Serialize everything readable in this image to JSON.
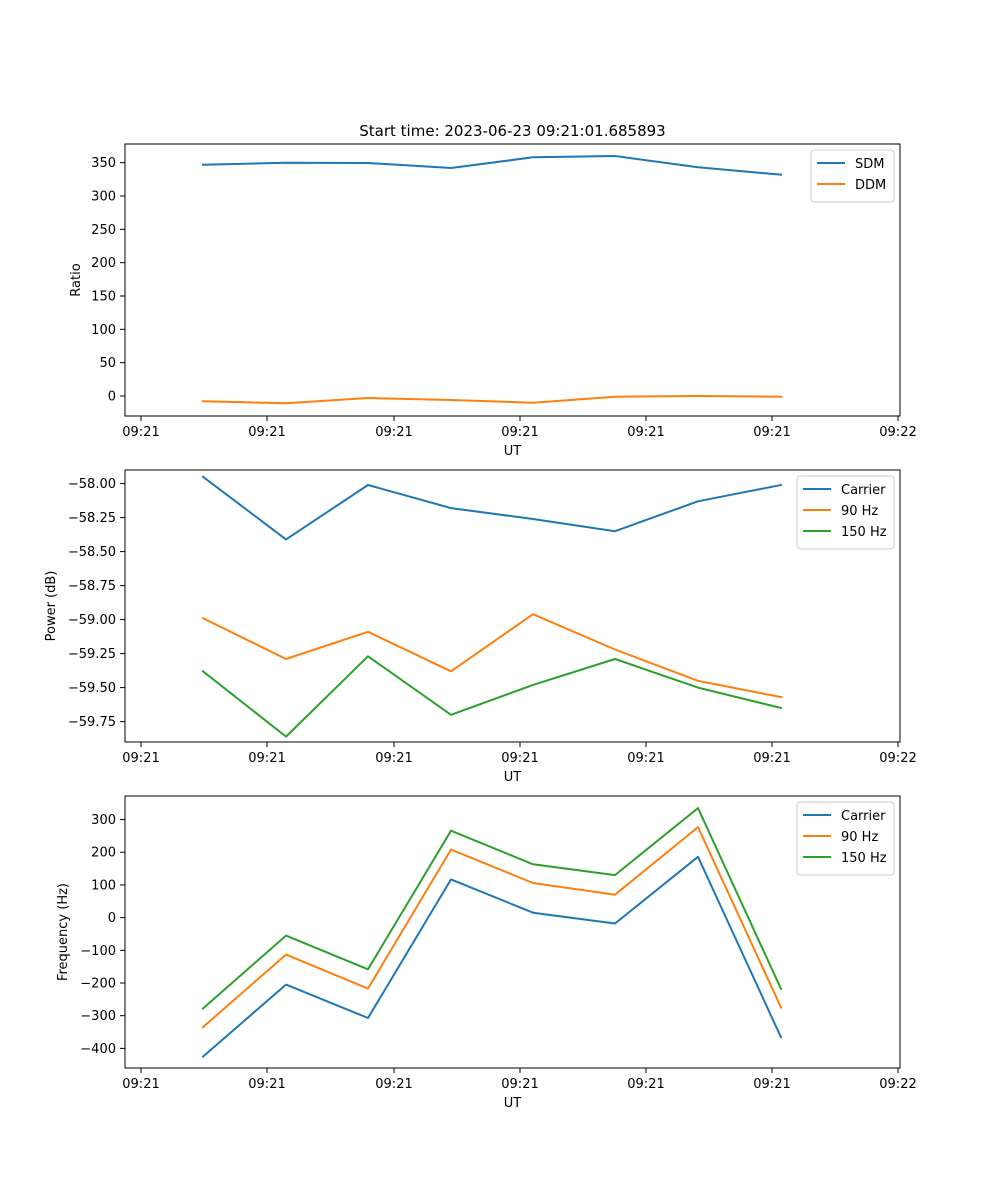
{
  "figure": {
    "title": "Start time: 2023-06-23 09:21:01.685893"
  },
  "chart_data": [
    {
      "type": "line",
      "xlabel": "UT",
      "ylabel": "Ratio",
      "x_tick_labels": [
        "09:21",
        "09:21",
        "09:21",
        "09:21",
        "09:21",
        "09:21",
        "09:22"
      ],
      "y_ticks": [
        0,
        50,
        100,
        150,
        200,
        250,
        300,
        350
      ],
      "y_tick_labels": [
        "0",
        "50",
        "100",
        "150",
        "200",
        "250",
        "300",
        "350"
      ],
      "ylim": [
        -30,
        378
      ],
      "legend_position": "upper right",
      "series": [
        {
          "name": "SDM",
          "color": "#1f77b4",
          "values": [
            347,
            350,
            349.5,
            342,
            358,
            360,
            343,
            332
          ]
        },
        {
          "name": "DDM",
          "color": "#ff7f0e",
          "values": [
            -8,
            -11,
            -3,
            -6,
            -10,
            -1,
            0,
            -1
          ]
        }
      ]
    },
    {
      "type": "line",
      "xlabel": "UT",
      "ylabel": "Power (dB)",
      "x_tick_labels": [
        "09:21",
        "09:21",
        "09:21",
        "09:21",
        "09:21",
        "09:21",
        "09:22"
      ],
      "y_ticks": [
        -58.0,
        -58.25,
        -58.5,
        -58.75,
        -59.0,
        -59.25,
        -59.5,
        -59.75
      ],
      "y_tick_labels": [
        "−58.00",
        "−58.25",
        "−58.50",
        "−58.75",
        "−59.00",
        "−59.25",
        "−59.50",
        "−59.75"
      ],
      "ylim": [
        -59.9,
        -57.9
      ],
      "legend_position": "upper right",
      "series": [
        {
          "name": "Carrier",
          "color": "#1f77b4",
          "values": [
            -57.95,
            -58.41,
            -58.01,
            -58.18,
            -58.26,
            -58.35,
            -58.13,
            -58.01
          ]
        },
        {
          "name": "90 Hz",
          "color": "#ff7f0e",
          "values": [
            -58.99,
            -59.29,
            -59.09,
            -59.38,
            -58.96,
            -59.22,
            -59.45,
            -59.57
          ]
        },
        {
          "name": "150 Hz",
          "color": "#2ca02c",
          "values": [
            -59.38,
            -59.86,
            -59.27,
            -59.7,
            -59.48,
            -59.29,
            -59.5,
            -59.65
          ]
        }
      ]
    },
    {
      "type": "line",
      "xlabel": "UT",
      "ylabel": "Frequency (Hz)",
      "x_tick_labels": [
        "09:21",
        "09:21",
        "09:21",
        "09:21",
        "09:21",
        "09:21",
        "09:22"
      ],
      "y_ticks": [
        300,
        200,
        100,
        0,
        -100,
        -200,
        -300,
        -400
      ],
      "y_tick_labels": [
        "300",
        "200",
        "100",
        "0",
        "−100",
        "−200",
        "−300",
        "−400"
      ],
      "ylim": [
        -460,
        372
      ],
      "legend_position": "upper right",
      "series": [
        {
          "name": "Carrier",
          "color": "#1f77b4",
          "values": [
            -425,
            -205,
            -307,
            117,
            15,
            -18,
            186,
            -366
          ]
        },
        {
          "name": "90 Hz",
          "color": "#ff7f0e",
          "values": [
            -335,
            -113,
            -217,
            208,
            106,
            70,
            277,
            -275
          ]
        },
        {
          "name": "150 Hz",
          "color": "#2ca02c",
          "values": [
            -278,
            -55,
            -158,
            266,
            163,
            130,
            335,
            -218
          ]
        }
      ]
    }
  ]
}
